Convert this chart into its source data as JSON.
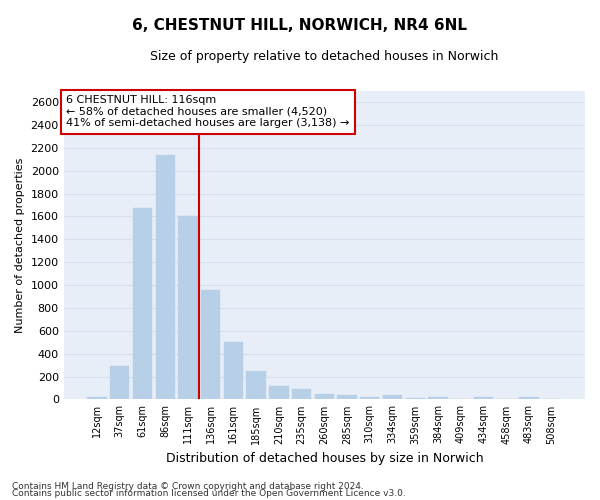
{
  "title_line1": "6, CHESTNUT HILL, NORWICH, NR4 6NL",
  "title_line2": "Size of property relative to detached houses in Norwich",
  "xlabel": "Distribution of detached houses by size in Norwich",
  "ylabel": "Number of detached properties",
  "bar_color": "#b8cfe8",
  "bar_edge_color": "#b8cfe8",
  "categories": [
    "12sqm",
    "37sqm",
    "61sqm",
    "86sqm",
    "111sqm",
    "136sqm",
    "161sqm",
    "185sqm",
    "210sqm",
    "235sqm",
    "260sqm",
    "285sqm",
    "310sqm",
    "334sqm",
    "359sqm",
    "384sqm",
    "409sqm",
    "434sqm",
    "458sqm",
    "483sqm",
    "508sqm"
  ],
  "values": [
    22,
    295,
    1675,
    2140,
    1600,
    960,
    505,
    250,
    120,
    95,
    45,
    40,
    25,
    35,
    15,
    20,
    8,
    18,
    5,
    18,
    5
  ],
  "ylim": [
    0,
    2700
  ],
  "yticks": [
    0,
    200,
    400,
    600,
    800,
    1000,
    1200,
    1400,
    1600,
    1800,
    2000,
    2200,
    2400,
    2600
  ],
  "annotation_title": "6 CHESTNUT HILL: 116sqm",
  "annotation_line1": "← 58% of detached houses are smaller (4,520)",
  "annotation_line2": "41% of semi-detached houses are larger (3,138) →",
  "footer_line1": "Contains HM Land Registry data © Crown copyright and database right 2024.",
  "footer_line2": "Contains public sector information licensed under the Open Government Licence v3.0.",
  "grid_color": "#d4dff0",
  "bg_color": "#e8eef8",
  "red_color": "#cc0000",
  "red_line_x": 4.5,
  "title1_fontsize": 11,
  "title2_fontsize": 9,
  "ylabel_fontsize": 8,
  "xlabel_fontsize": 9,
  "tick_fontsize": 8,
  "xtick_fontsize": 7,
  "footer_fontsize": 6.5,
  "ann_fontsize": 8
}
